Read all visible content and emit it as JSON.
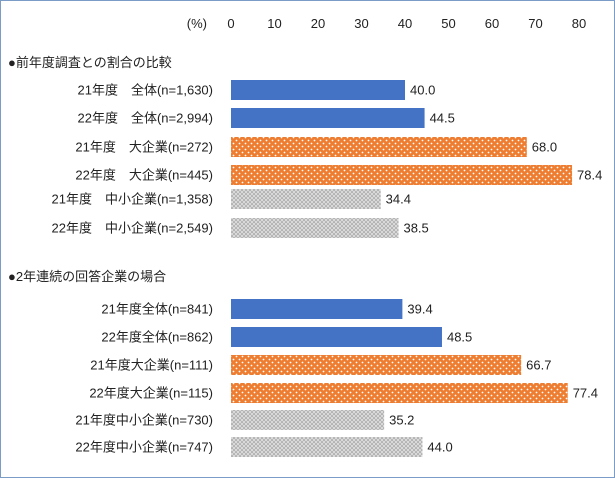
{
  "chart_data": {
    "type": "bar",
    "orientation": "horizontal",
    "unit_label": "(%)",
    "xlim": [
      0,
      80
    ],
    "x_ticks": [
      0,
      10,
      20,
      30,
      40,
      50,
      60,
      70,
      80
    ],
    "grid": false,
    "legend": "none",
    "groups": [
      {
        "title": "●前年度調査との割合の比較",
        "bars": [
          {
            "label": "21年度　全体(n=1,630)",
            "value": 40.0,
            "value_label": "40.0",
            "category": "all"
          },
          {
            "label": "22年度　全体(n=2,994)",
            "value": 44.5,
            "value_label": "44.5",
            "category": "all"
          },
          {
            "label": "21年度　大企業(n=272)",
            "value": 68.0,
            "value_label": "68.0",
            "category": "large"
          },
          {
            "label": "22年度　大企業(n=445)",
            "value": 78.4,
            "value_label": "78.4",
            "category": "large"
          },
          {
            "label": "21年度　中小企業(n=1,358)",
            "value": 34.4,
            "value_label": "34.4",
            "category": "sme"
          },
          {
            "label": "22年度　中小企業(n=2,549)",
            "value": 38.5,
            "value_label": "38.5",
            "category": "sme"
          }
        ]
      },
      {
        "title": "●2年連続の回答企業の場合",
        "bars": [
          {
            "label": "21年度全体(n=841)",
            "value": 39.4,
            "value_label": "39.4",
            "category": "all"
          },
          {
            "label": "22年度全体(n=862)",
            "value": 48.5,
            "value_label": "48.5",
            "category": "all"
          },
          {
            "label": "21年度大企業(n=111)",
            "value": 66.7,
            "value_label": "66.7",
            "category": "large"
          },
          {
            "label": "22年度大企業(n=115)",
            "value": 77.4,
            "value_label": "77.4",
            "category": "large"
          },
          {
            "label": "21年度中小企業(n=730)",
            "value": 35.2,
            "value_label": "35.2",
            "category": "sme"
          },
          {
            "label": "22年度中小企業(n=747)",
            "value": 44.0,
            "value_label": "44.0",
            "category": "sme"
          }
        ]
      }
    ]
  },
  "colors": {
    "all": "#4472c4",
    "large": "#ed7d31",
    "sme": "#a6a6a6"
  }
}
